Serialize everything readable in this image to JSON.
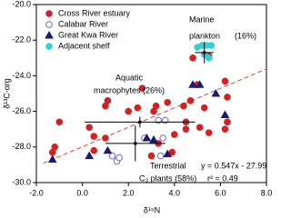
{
  "chart_data": {
    "type": "scatter",
    "xlabel": "δ¹⁵N",
    "ylabel": "δ¹³C-org",
    "xlim": [
      -2,
      8
    ],
    "ylim": [
      -30,
      -20
    ],
    "xticks": [
      {
        "value": -2,
        "label": "-2.0"
      },
      {
        "value": 0,
        "label": "0.0"
      },
      {
        "value": 2,
        "label": "2.0"
      },
      {
        "value": 4,
        "label": "4.0"
      },
      {
        "value": 6,
        "label": "6.0"
      },
      {
        "value": 8,
        "label": "8.0"
      }
    ],
    "yticks": [
      {
        "value": -30,
        "label": "-30.0"
      },
      {
        "value": -28,
        "label": "-28.0"
      },
      {
        "value": -26,
        "label": "-26.0"
      },
      {
        "value": -24,
        "label": "-24.0"
      },
      {
        "value": -22,
        "label": "-22.0"
      },
      {
        "value": -20,
        "label": "-20.0"
      }
    ],
    "series": [
      {
        "name": "Cross River estuary",
        "color": "#d42020",
        "marker": "circle",
        "filled": true,
        "x": [
          -1.3,
          -1.2,
          -1.0,
          0.3,
          0.5,
          0.5,
          1.0,
          1.0,
          1.1,
          2.0,
          2.4,
          2.6,
          3.0,
          3.1,
          3.2,
          3.3,
          3.7,
          3.9,
          4.0,
          4.4,
          4.5,
          4.7,
          4.8,
          5.0,
          5.1,
          5.3,
          5.5,
          5.5,
          6.2,
          6.3,
          6.2,
          6.3,
          4.5
        ],
        "y": [
          -28.3,
          -28.0,
          -26.6,
          -26.9,
          -27.4,
          -28.2,
          -27.5,
          -25.7,
          -25.4,
          -26.0,
          -25.8,
          -24.7,
          -28.5,
          -26.0,
          -25.7,
          -27.8,
          -25.5,
          -28.3,
          -27.3,
          -25.7,
          -27.0,
          -25.4,
          -23.0,
          -24.5,
          -26.9,
          -25.8,
          -22.9,
          -27.2,
          -24.3,
          -25.2,
          -27.0,
          -26.6,
          -26.6
        ]
      },
      {
        "name": "Calabar River",
        "color": "#6a6ab8",
        "marker": "circle",
        "filled": false,
        "x": [
          1.3,
          1.5,
          1.6,
          2.7,
          3.3,
          3.6,
          3.5,
          3.4
        ],
        "y": [
          -28.5,
          -28.8,
          -28.6,
          -27.5,
          -26.5,
          -26.5,
          -27.5,
          -28.5
        ]
      },
      {
        "name": "Great Kwa River",
        "color": "#1a1a6e",
        "marker": "triangle",
        "filled": true,
        "x": [
          -1.3,
          0.3,
          1.1,
          2.8,
          3.1,
          3.7,
          4.8,
          5.1,
          5.8,
          6.2
        ],
        "y": [
          -28.7,
          -28.5,
          -28.2,
          -27.5,
          -27.6,
          -28.4,
          -24.5,
          -24.5,
          -25.0,
          -26.2
        ]
      },
      {
        "name": "Adjacent shelf",
        "color": "#30d0d8",
        "marker": "circle",
        "filled": true,
        "x": [
          5.0,
          5.2,
          5.4,
          5.6,
          5.3,
          5.5
        ],
        "y": [
          -22.4,
          -22.3,
          -22.3,
          -22.3,
          -22.8,
          -23.0
        ]
      }
    ],
    "end_members": {
      "color": "#000000",
      "x": [
        5.3,
        2.5,
        2.3
      ],
      "y": [
        -22.7,
        -26.6,
        -27.8
      ],
      "xerr": [
        0.4,
        2.4,
        1.3
      ],
      "yerr": [
        0.6,
        0.3,
        1.0
      ]
    },
    "regression": {
      "slope": 0.547,
      "intercept": -27.99,
      "color": "#e04040",
      "x_range": [
        -1.7,
        8
      ]
    },
    "annotations": [
      "Marine",
      "plankton",
      "(16%)",
      "Aquatic",
      "macrophytes (26%)",
      "Terrestrial",
      "C₃ plants (58%)",
      "y = 0.547x - 27.99",
      "r² = 0.49"
    ],
    "legend": "upper left"
  }
}
